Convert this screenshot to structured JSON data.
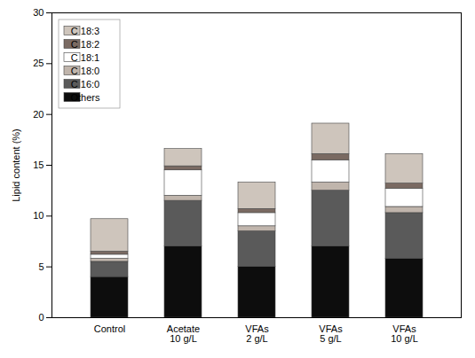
{
  "chart_data": {
    "type": "bar",
    "stacked": true,
    "categories": [
      "Control",
      "Acetate\n10 g/L",
      "VFAs\n2 g/L",
      "VFAs\n5 g/L",
      "VFAs\n10 g/L"
    ],
    "series": [
      {
        "name": "Others",
        "color": "#0d0d0d",
        "values": [
          4.0,
          7.0,
          5.0,
          7.0,
          5.8
        ]
      },
      {
        "name": "C 16:0",
        "color": "#5a5a5a",
        "values": [
          1.5,
          4.5,
          3.5,
          5.5,
          4.5
        ]
      },
      {
        "name": "C 18:0",
        "color": "#c0b5ac",
        "values": [
          0.3,
          0.5,
          0.5,
          0.8,
          0.6
        ]
      },
      {
        "name": "C 18:1",
        "color": "#ffffff",
        "values": [
          0.4,
          2.5,
          1.3,
          2.2,
          1.8
        ]
      },
      {
        "name": "C 18:2",
        "color": "#7a6a62",
        "values": [
          0.3,
          0.4,
          0.4,
          0.6,
          0.5
        ]
      },
      {
        "name": "C 18:3",
        "color": "#cec5bc",
        "values": [
          3.2,
          1.7,
          2.6,
          3.0,
          2.9
        ]
      }
    ],
    "ylabel": "Lipid content (%)",
    "ylim": [
      0,
      30
    ],
    "yticks": [
      0,
      5,
      10,
      15,
      20,
      25,
      30
    ],
    "grid": false,
    "legend": "upper left"
  }
}
